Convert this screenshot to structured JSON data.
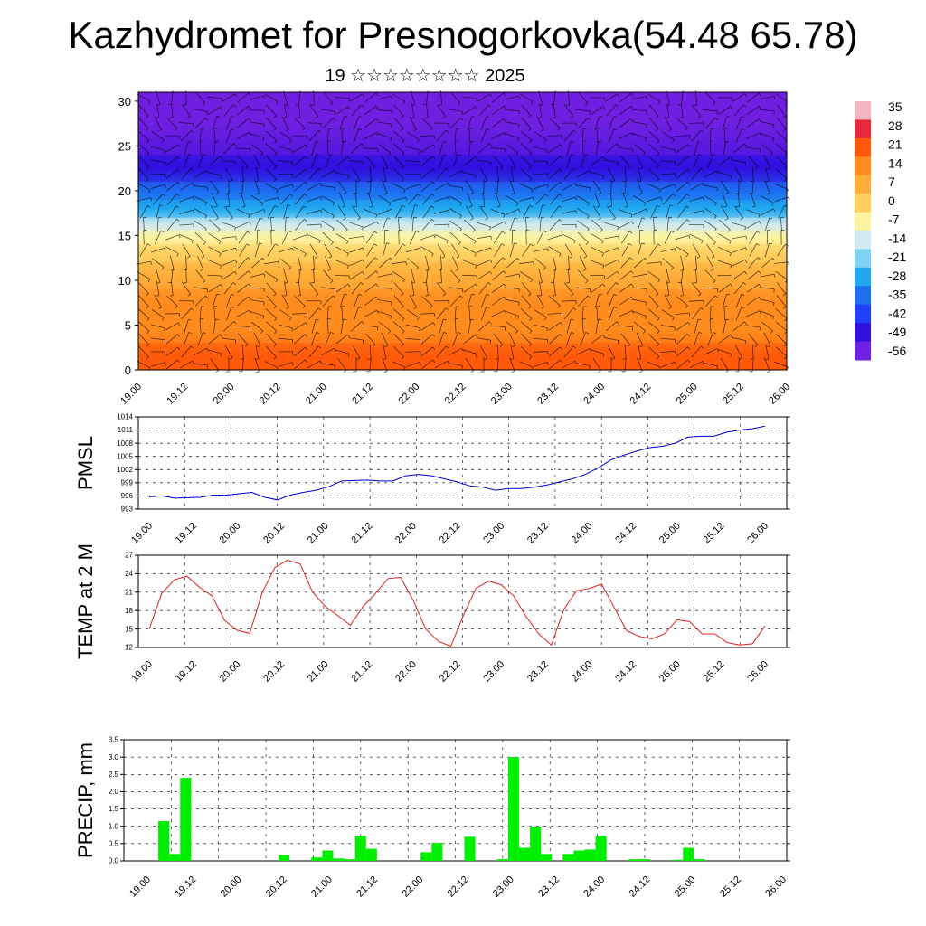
{
  "title": "Kazhydromet for Presnogorkovka(54.48 65.78)",
  "subtitle": "19 ☆☆☆☆☆☆☆☆ 2025",
  "x_tick_labels": [
    "19.00",
    "19.12",
    "20.00",
    "20.12",
    "21.00",
    "21.12",
    "22.00",
    "22.12",
    "23.00",
    "23.12",
    "24.00",
    "24.12",
    "25.00",
    "25.12",
    "26.00"
  ],
  "colorbar": {
    "labels": [
      "35",
      "28",
      "21",
      "14",
      "7",
      "0",
      "-7",
      "-14",
      "-21",
      "-28",
      "-35",
      "-42",
      "-49",
      "-56"
    ],
    "colors": [
      "#f2b8c0",
      "#e8283a",
      "#ff5a0a",
      "#ff8c1e",
      "#ffae3a",
      "#ffd060",
      "#fff3a0",
      "#cfeaf2",
      "#7fd3f2",
      "#20a8f0",
      "#1e6ef0",
      "#2040ff",
      "#3010e0",
      "#7020e0"
    ]
  },
  "chart_data": [
    {
      "type": "heatmap",
      "ylim": [
        0,
        31
      ],
      "yticks": [
        0,
        5,
        10,
        15,
        20,
        25,
        30
      ],
      "y_tick_labels": [
        "0",
        "5",
        "10",
        "15",
        "20",
        "25",
        "30"
      ],
      "x": [
        "19.00",
        "19.12",
        "20.00",
        "20.12",
        "21.00",
        "21.12",
        "22.00",
        "22.12",
        "23.00",
        "23.12",
        "24.00",
        "24.12",
        "25.00",
        "25.12",
        "26.00"
      ],
      "bands": [
        {
          "y0": 0,
          "y1": 3,
          "value": 22
        },
        {
          "y0": 3,
          "y1": 6,
          "value": 17
        },
        {
          "y0": 6,
          "y1": 9,
          "value": 11
        },
        {
          "y0": 9,
          "y1": 12,
          "value": 5
        },
        {
          "y0": 12,
          "y1": 14,
          "value": -2
        },
        {
          "y0": 14,
          "y1": 15.5,
          "value": -8
        },
        {
          "y0": 15.5,
          "y1": 17,
          "value": -17
        },
        {
          "y0": 17,
          "y1": 19,
          "value": -27
        },
        {
          "y0": 19,
          "y1": 21,
          "value": -37
        },
        {
          "y0": 21,
          "y1": 24,
          "value": -48
        },
        {
          "y0": 24,
          "y1": 31,
          "value": -54
        }
      ]
    },
    {
      "type": "line",
      "ylabel": "PMSL",
      "ylim": [
        993,
        1014
      ],
      "yticks": [
        993,
        996,
        999,
        1002,
        1005,
        1008,
        1011,
        1014
      ],
      "y_tick_labels": [
        "993",
        "996",
        "999",
        "1002",
        "1005",
        "1008",
        "1011",
        "1014"
      ],
      "x_tick_labels": [
        "19.00",
        "19.12",
        "20.00",
        "20.12",
        "21.00",
        "21.12",
        "22.00",
        "22.12",
        "23.00",
        "23.12",
        "24.00",
        "24.12",
        "25.00",
        "25.12",
        "26.00"
      ],
      "color": "#0000cc",
      "values": [
        995.8,
        996.0,
        995.5,
        995.6,
        995.7,
        996.2,
        996.2,
        996.5,
        996.8,
        995.7,
        995.1,
        996.2,
        996.8,
        997.3,
        998.1,
        999.4,
        999.5,
        999.6,
        999.4,
        999.4,
        1000.6,
        1000.9,
        1000.6,
        999.9,
        999.2,
        998.3,
        998.0,
        997.3,
        997.7,
        997.7,
        998.0,
        998.5,
        999.2,
        999.9,
        1000.9,
        1002.4,
        1004.2,
        1005.3,
        1006.2,
        1007.0,
        1007.3,
        1008.0,
        1009.4,
        1009.6,
        1009.6,
        1010.5,
        1011.0,
        1011.3,
        1011.9
      ]
    },
    {
      "type": "line",
      "ylabel": "TEMP at 2 M",
      "ylim": [
        12,
        27
      ],
      "yticks": [
        12,
        15,
        18,
        21,
        24,
        27
      ],
      "y_tick_labels": [
        "12",
        "15",
        "18",
        "21",
        "24",
        "27"
      ],
      "x_tick_labels": [
        "19.00",
        "19.12",
        "20.00",
        "20.12",
        "21.00",
        "21.12",
        "22.00",
        "22.12",
        "23.00",
        "23.12",
        "24.00",
        "24.12",
        "25.00",
        "25.12",
        "26.00"
      ],
      "color": "#e02020",
      "values": [
        15.0,
        20.8,
        23.0,
        23.6,
        21.8,
        20.4,
        16.4,
        14.8,
        14.3,
        21.0,
        25.0,
        26.2,
        25.6,
        21.0,
        18.7,
        17.2,
        15.6,
        18.6,
        20.8,
        23.2,
        23.4,
        19.7,
        15.0,
        13.0,
        12.2,
        17.2,
        21.6,
        22.8,
        22.2,
        20.4,
        17.0,
        14.2,
        12.4,
        18.2,
        21.2,
        21.6,
        22.3,
        18.5,
        14.7,
        13.8,
        13.4,
        14.2,
        16.5,
        16.2,
        14.2,
        14.2,
        12.8,
        12.4,
        12.6,
        15.5
      ]
    },
    {
      "type": "bar",
      "ylabel": "PRECIP, mm",
      "ylim": [
        0,
        3.5
      ],
      "yticks": [
        0,
        0.5,
        1.0,
        1.5,
        2.0,
        2.5,
        3.0,
        3.5
      ],
      "y_tick_labels": [
        "0.0",
        "0.5",
        "1.0",
        "1.5",
        "2.0",
        "2.5",
        "3.0",
        "3.5"
      ],
      "x_tick_labels": [
        "19.00",
        "19.12",
        "20.00",
        "20.12",
        "21.00",
        "21.12",
        "22.00",
        "22.12",
        "23.00",
        "23.12",
        "24.00",
        "24.12",
        "25.00",
        "25.12",
        "26.00"
      ],
      "color": "#00ee00",
      "values": [
        0,
        1.15,
        0.2,
        2.4,
        0,
        0,
        0,
        0,
        0,
        0,
        0,
        0,
        0.17,
        0,
        0,
        0.1,
        0.3,
        0.07,
        0.05,
        0.72,
        0.35,
        0,
        0,
        0,
        0,
        0.25,
        0.52,
        0,
        0,
        0.7,
        0,
        0,
        0.05,
        3.0,
        0.38,
        0.98,
        0.2,
        0,
        0.2,
        0.3,
        0.33,
        0.72,
        0,
        0,
        0.05,
        0.05,
        0,
        0,
        0.03,
        0.38,
        0.05,
        0,
        0,
        0,
        0,
        0,
        0
      ]
    }
  ]
}
